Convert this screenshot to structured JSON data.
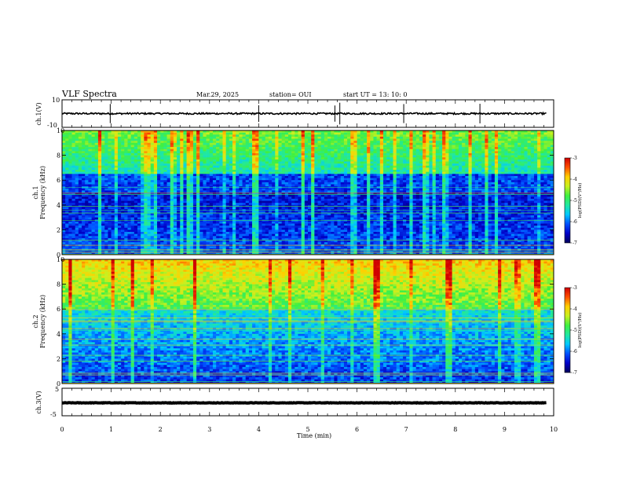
{
  "header": {
    "title": "VLF Spectra",
    "date": "Mar.29, 2025",
    "station": "station= OUI",
    "start_time": "start  UT =   13: 10: 0"
  },
  "colors": {
    "colormap": [
      "#00005a",
      "#0000c8",
      "#0050ff",
      "#00c8ff",
      "#20e8a0",
      "#40f040",
      "#c8f020",
      "#ffd000",
      "#ff5000",
      "#d00000",
      "#ffffff"
    ]
  },
  "chart_data": [
    {
      "type": "line",
      "panel": "ch1-waveform",
      "ylabel": "ch.1(V)",
      "ylim": [
        -10,
        10
      ],
      "yticks": [
        "10",
        "-10"
      ],
      "baseline_value": 0,
      "spike_times_min": [
        0.98,
        4.0,
        5.55,
        5.65,
        6.95,
        8.5
      ]
    },
    {
      "type": "heatmap",
      "panel": "ch1-spectrogram",
      "ylabel": "ch.1 Frequency (kHz)",
      "ylim": [
        0,
        10
      ],
      "yticks": [
        "0",
        "2",
        "4",
        "6",
        "8",
        "10"
      ],
      "colorbar": {
        "label": "log(PSD)(V²/Hz)",
        "ticks": [
          "-3",
          "-4",
          "-5",
          "-6",
          "-7"
        ],
        "range": [
          -7,
          -3
        ]
      }
    },
    {
      "type": "heatmap",
      "panel": "ch2-spectrogram",
      "ylabel": "ch.2 Frequency (kHz)",
      "ylim": [
        0,
        10
      ],
      "yticks": [
        "0",
        "2",
        "4",
        "6",
        "8",
        "10"
      ],
      "colorbar": {
        "label": "log(PSD)(V²/Hz)",
        "ticks": [
          "-3",
          "-4",
          "-5",
          "-6",
          "-7"
        ],
        "range": [
          -7,
          -3
        ]
      }
    },
    {
      "type": "line",
      "panel": "ch3-waveform",
      "ylabel": "ch.3(V)",
      "ylim": [
        -5,
        5
      ],
      "yticks": [
        "5",
        "-5"
      ],
      "baseline_value": -0.3
    }
  ],
  "xaxis": {
    "label": "Time (min)",
    "ticks": [
      "0",
      "1",
      "2",
      "3",
      "4",
      "5",
      "6",
      "7",
      "8",
      "9",
      "10"
    ],
    "range": [
      0,
      10
    ]
  }
}
